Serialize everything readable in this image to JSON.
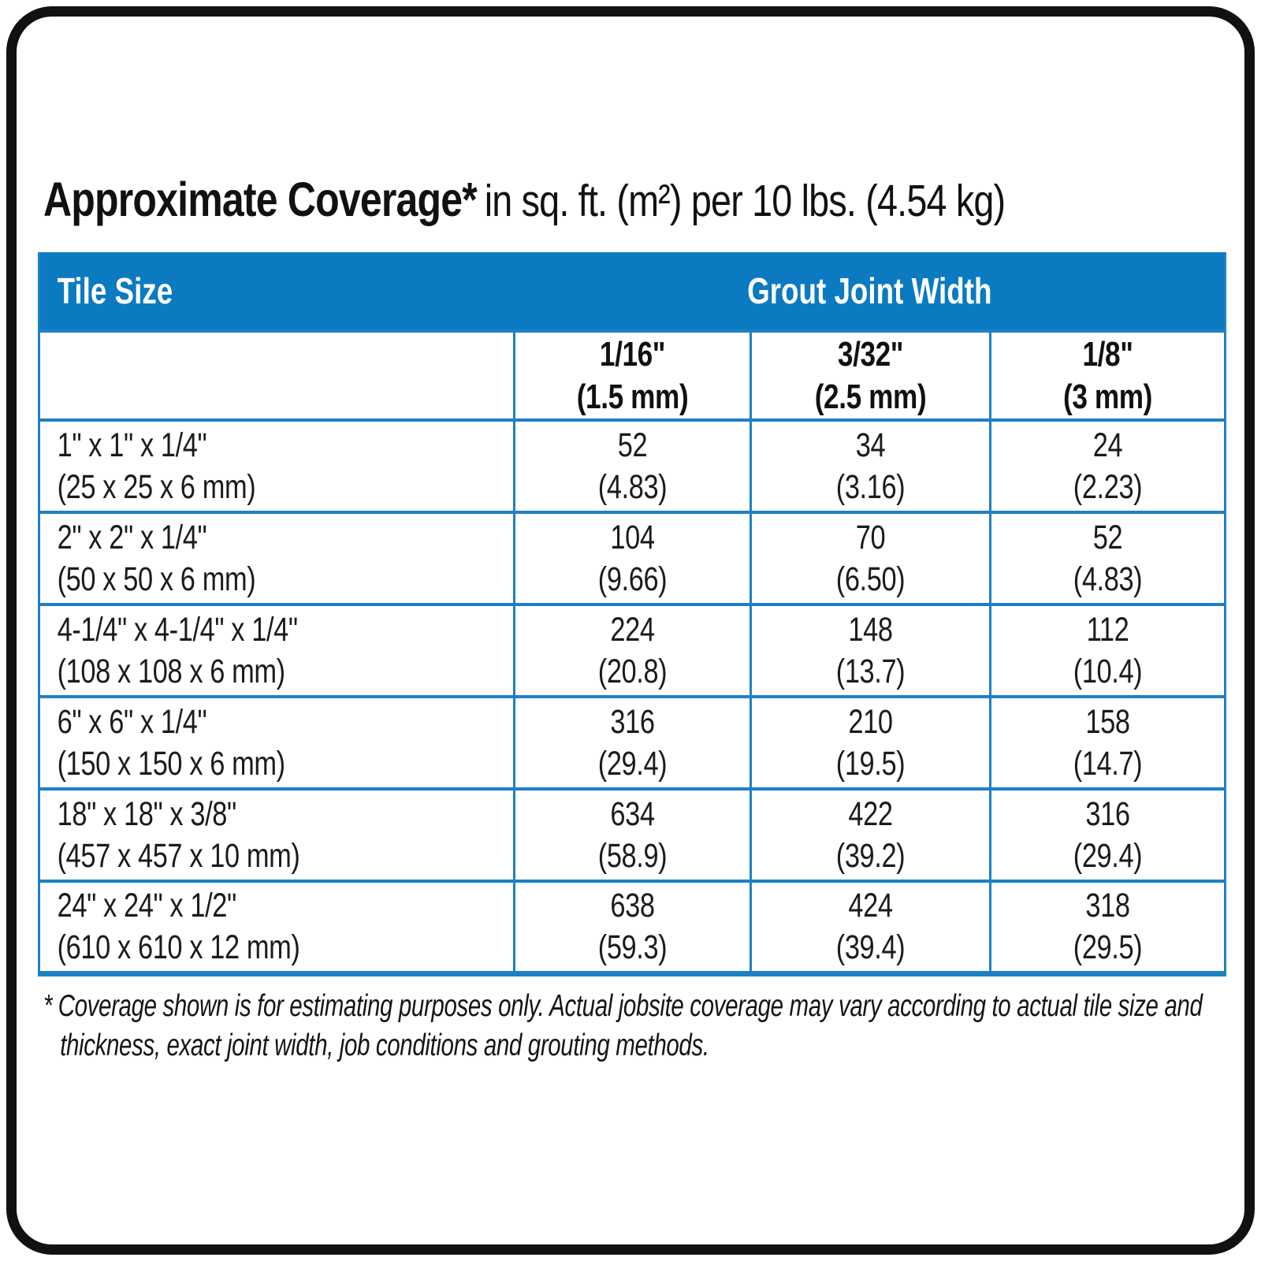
{
  "title": {
    "bold": "Approximate Coverage*",
    "rest": "in sq. ft. (m²) per 10 lbs. (4.54 kg)"
  },
  "table": {
    "col_headers": {
      "tile_size": "Tile Size",
      "grout": "Grout Joint Width"
    },
    "joint_widths": [
      {
        "inches": "1/16\"",
        "mm": "(1.5 mm)"
      },
      {
        "inches": "3/32\"",
        "mm": "(2.5 mm)"
      },
      {
        "inches": "1/8\"",
        "mm": "(3 mm)"
      }
    ],
    "rows": [
      {
        "size_in": "1\" x 1\" x 1/4\"",
        "size_mm": "(25 x 25 x 6 mm)",
        "values": [
          {
            "sqft": "52",
            "m2": "(4.83)"
          },
          {
            "sqft": "34",
            "m2": "(3.16)"
          },
          {
            "sqft": "24",
            "m2": "(2.23)"
          }
        ]
      },
      {
        "size_in": "2\" x 2\" x 1/4\"",
        "size_mm": "(50 x 50 x 6 mm)",
        "values": [
          {
            "sqft": "104",
            "m2": "(9.66)"
          },
          {
            "sqft": "70",
            "m2": "(6.50)"
          },
          {
            "sqft": "52",
            "m2": "(4.83)"
          }
        ]
      },
      {
        "size_in": "4-1/4\" x 4-1/4\" x 1/4\"",
        "size_mm": "(108 x 108 x 6 mm)",
        "values": [
          {
            "sqft": "224",
            "m2": "(20.8)"
          },
          {
            "sqft": "148",
            "m2": "(13.7)"
          },
          {
            "sqft": "112",
            "m2": "(10.4)"
          }
        ]
      },
      {
        "size_in": "6\" x 6\" x 1/4\"",
        "size_mm": "(150 x 150 x 6 mm)",
        "values": [
          {
            "sqft": "316",
            "m2": "(29.4)"
          },
          {
            "sqft": "210",
            "m2": "(19.5)"
          },
          {
            "sqft": "158",
            "m2": "(14.7)"
          }
        ]
      },
      {
        "size_in": "18\" x 18\" x 3/8\"",
        "size_mm": "(457 x 457 x 10 mm)",
        "values": [
          {
            "sqft": "634",
            "m2": "(58.9)"
          },
          {
            "sqft": "422",
            "m2": "(39.2)"
          },
          {
            "sqft": "316",
            "m2": "(29.4)"
          }
        ]
      },
      {
        "size_in": "24\" x 24\" x 1/2\"",
        "size_mm": "(610 x 610 x 12 mm)",
        "values": [
          {
            "sqft": "638",
            "m2": "(59.3)"
          },
          {
            "sqft": "424",
            "m2": "(39.4)"
          },
          {
            "sqft": "318",
            "m2": "(29.5)"
          }
        ]
      }
    ]
  },
  "footnote": {
    "symbol": "*",
    "text": "Coverage shown is for estimating purposes only. Actual jobsite coverage may vary according to actual tile size and thickness, exact joint width, job conditions and grouting methods."
  },
  "colors": {
    "header_blue": "#0b7ac1",
    "border_blue": "#1e80c4"
  }
}
